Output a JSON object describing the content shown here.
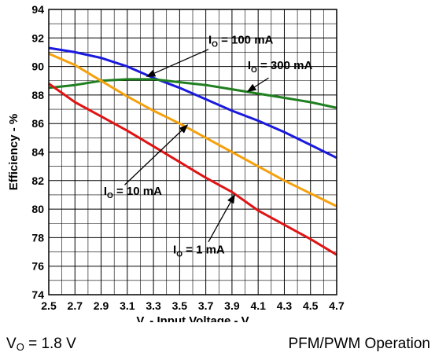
{
  "chart_data": {
    "type": "line",
    "xlabel_main": "V",
    "xlabel_sub": "I",
    "xlabel_rest": " - Input Voltage - V",
    "ylabel": "Efficiency - %",
    "xlim": [
      2.5,
      4.7
    ],
    "ylim": [
      74,
      94
    ],
    "xticks": [
      "2.5",
      "2.7",
      "2.9",
      "3.1",
      "3.3",
      "3.5",
      "3.7",
      "3.9",
      "4.1",
      "4.3",
      "4.5",
      "4.7"
    ],
    "yticks": [
      "74",
      "76",
      "78",
      "80",
      "82",
      "84",
      "86",
      "88",
      "90",
      "92",
      "94"
    ],
    "grid": true,
    "series": [
      {
        "name_main": "I",
        "name_sub": "O",
        "name_rest": " = 100 mA",
        "color": "#1a1adf",
        "x": [
          2.5,
          2.7,
          2.9,
          3.1,
          3.3,
          3.5,
          3.7,
          3.9,
          4.1,
          4.3,
          4.5,
          4.7
        ],
        "y": [
          91.3,
          91.0,
          90.6,
          90.0,
          89.2,
          88.5,
          87.7,
          86.9,
          86.2,
          85.4,
          84.5,
          83.6
        ]
      },
      {
        "name_main": "I",
        "name_sub": "O",
        "name_rest": " = 300 mA",
        "color": "#1f7f1f",
        "x": [
          2.5,
          2.7,
          2.9,
          3.1,
          3.3,
          3.5,
          3.7,
          3.9,
          4.1,
          4.3,
          4.5,
          4.7
        ],
        "y": [
          88.5,
          88.7,
          89.0,
          89.1,
          89.1,
          88.9,
          88.7,
          88.4,
          88.1,
          87.8,
          87.5,
          87.1
        ]
      },
      {
        "name_main": "I",
        "name_sub": "O",
        "name_rest": " = 10 mA",
        "color": "#f5a10d",
        "x": [
          2.5,
          2.7,
          2.9,
          3.1,
          3.3,
          3.5,
          3.7,
          3.9,
          4.1,
          4.3,
          4.5,
          4.7
        ],
        "y": [
          90.9,
          90.1,
          89.0,
          87.9,
          86.9,
          86.0,
          85.0,
          84.0,
          83.0,
          82.0,
          81.1,
          80.2
        ]
      },
      {
        "name_main": "I",
        "name_sub": "O",
        "name_rest": " = 1 mA",
        "color": "#e01414",
        "x": [
          2.5,
          2.7,
          2.9,
          3.1,
          3.3,
          3.5,
          3.7,
          3.9,
          4.1,
          4.3,
          4.5,
          4.7
        ],
        "y": [
          88.8,
          87.5,
          86.5,
          85.5,
          84.4,
          83.3,
          82.2,
          81.2,
          79.9,
          78.9,
          77.9,
          76.8
        ]
      }
    ],
    "annotations": [
      {
        "series": 0,
        "label_x": 3.72,
        "label_y": 91.6,
        "arrow_from": [
          3.72,
          91.2
        ],
        "arrow_to": [
          3.25,
          89.3
        ]
      },
      {
        "series": 1,
        "label_x": 4.02,
        "label_y": 89.8,
        "arrow_from": [
          4.18,
          89.2
        ],
        "arrow_to": [
          4.02,
          88.25
        ]
      },
      {
        "series": 2,
        "label_x": 2.92,
        "label_y": 81.0,
        "arrow_from": [
          3.08,
          81.7
        ],
        "arrow_to": [
          3.56,
          85.9
        ]
      },
      {
        "series": 3,
        "label_x": 3.45,
        "label_y": 76.9,
        "arrow_from": [
          3.72,
          77.7
        ],
        "arrow_to": [
          3.92,
          81.0
        ]
      }
    ]
  },
  "notes": {
    "vo_main": "V",
    "vo_sub": "O",
    "vo_rest": " = 1.8 V",
    "mode": "PFM/PWM Operation"
  }
}
